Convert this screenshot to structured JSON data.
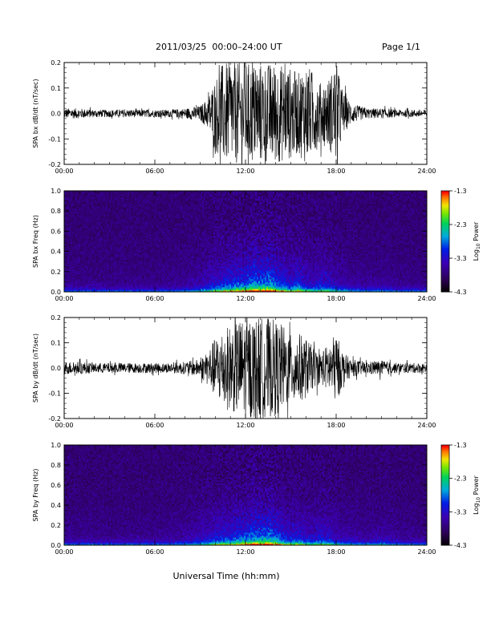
{
  "header": {
    "title": "2011/03/25  00:00–24:00 UT",
    "page": "Page 1/1"
  },
  "xlabel": "Universal Time (hh:mm)",
  "colorbar": {
    "label_prefix": "Log",
    "label_sub": "10",
    "label_suffix": " Power",
    "ticks": [
      "-1.3",
      "-2.3",
      "-3.3",
      "-4.3"
    ],
    "values": [
      -1.3,
      -2.3,
      -3.3,
      -4.3
    ]
  },
  "chart_data": [
    {
      "type": "line",
      "ylabel": "SPA bx dB/dt (nT/sec)",
      "xticks": [
        "00:00",
        "06:00",
        "12:00",
        "18:00",
        "24:00"
      ],
      "xlim": [
        0,
        24
      ],
      "ylim": [
        -0.2,
        0.2
      ],
      "yticks": [
        "0.2",
        "0.1",
        "0.0",
        "-0.1",
        "-0.2"
      ],
      "ytick_values": [
        0.2,
        0.1,
        0.0,
        -0.1,
        -0.2
      ],
      "series": [
        {
          "x": [
            0,
            1,
            2,
            3,
            4,
            5,
            6,
            7,
            8,
            9,
            9.5,
            10,
            10.5,
            11,
            11.5,
            12,
            12.5,
            13,
            13.5,
            14,
            14.5,
            15,
            15.5,
            16,
            16.5,
            17,
            17.5,
            18,
            18.5,
            19,
            20,
            21,
            22,
            23,
            24
          ],
          "amplitude": [
            0.02,
            0.02,
            0.015,
            0.015,
            0.015,
            0.015,
            0.015,
            0.015,
            0.02,
            0.03,
            0.06,
            0.14,
            0.2,
            0.2,
            0.2,
            0.2,
            0.2,
            0.2,
            0.2,
            0.2,
            0.19,
            0.18,
            0.16,
            0.2,
            0.16,
            0.12,
            0.14,
            0.2,
            0.08,
            0.04,
            0.02,
            0.02,
            0.015,
            0.015,
            0.015
          ]
        }
      ]
    },
    {
      "type": "heatmap",
      "ylabel": "SPA bx Freq (Hz)",
      "xticks": [
        "00:00",
        "06:00",
        "12:00",
        "18:00",
        "24:00"
      ],
      "xlim": [
        0,
        24
      ],
      "ylim": [
        0,
        1
      ],
      "yticks": [
        "1.0",
        "0.8",
        "0.6",
        "0.4",
        "0.2",
        "0.0"
      ],
      "ytick_values": [
        1.0,
        0.8,
        0.6,
        0.4,
        0.2,
        0.0
      ],
      "zlim": [
        -4.3,
        -1.3
      ],
      "activity": {
        "t": [
          0,
          2,
          4,
          6,
          8,
          9,
          10,
          11,
          12,
          12.5,
          13,
          13.5,
          14,
          14.5,
          15,
          15.5,
          16,
          16.5,
          17,
          17.5,
          18,
          19,
          20,
          21,
          22,
          24
        ],
        "level": [
          0.1,
          0.1,
          0.1,
          0.1,
          0.15,
          0.25,
          0.45,
          0.6,
          0.7,
          0.85,
          0.75,
          0.9,
          0.7,
          0.6,
          0.45,
          0.6,
          0.4,
          0.35,
          0.45,
          0.4,
          0.3,
          0.2,
          0.15,
          0.18,
          0.12,
          0.1
        ]
      }
    },
    {
      "type": "line",
      "ylabel": "SPA by dB/dt (nT/sec)",
      "xticks": [
        "00:00",
        "06:00",
        "12:00",
        "18:00",
        "24:00"
      ],
      "xlim": [
        0,
        24
      ],
      "ylim": [
        -0.2,
        0.2
      ],
      "yticks": [
        "0.2",
        "0.1",
        "0.0",
        "-0.1",
        "-0.2"
      ],
      "ytick_values": [
        0.2,
        0.1,
        0.0,
        -0.1,
        -0.2
      ],
      "series": [
        {
          "x": [
            0,
            1,
            2,
            3,
            4,
            5,
            6,
            7,
            8,
            9,
            9.5,
            10,
            10.5,
            11,
            11.5,
            12,
            12.5,
            13,
            13.5,
            14,
            14.5,
            15,
            15.5,
            16,
            16.5,
            17,
            17.5,
            18,
            18.5,
            19,
            20,
            21,
            22,
            23,
            24
          ],
          "amplitude": [
            0.025,
            0.025,
            0.02,
            0.02,
            0.02,
            0.02,
            0.02,
            0.02,
            0.025,
            0.035,
            0.07,
            0.12,
            0.16,
            0.17,
            0.19,
            0.2,
            0.2,
            0.2,
            0.2,
            0.19,
            0.17,
            0.13,
            0.14,
            0.12,
            0.08,
            0.06,
            0.1,
            0.14,
            0.06,
            0.035,
            0.025,
            0.03,
            0.02,
            0.02,
            0.02
          ]
        }
      ]
    },
    {
      "type": "heatmap",
      "ylabel": "SPA by Freq (Hz)",
      "xticks": [
        "00:00",
        "06:00",
        "12:00",
        "18:00",
        "24:00"
      ],
      "xlim": [
        0,
        24
      ],
      "ylim": [
        0,
        1
      ],
      "yticks": [
        "1.0",
        "0.8",
        "0.6",
        "0.4",
        "0.2",
        "0.0"
      ],
      "ytick_values": [
        1.0,
        0.8,
        0.6,
        0.4,
        0.2,
        0.0
      ],
      "zlim": [
        -4.3,
        -1.3
      ],
      "activity": {
        "t": [
          0,
          2,
          4,
          6,
          8,
          9,
          10,
          11,
          12,
          12.5,
          13,
          13.5,
          14,
          14.5,
          15,
          15.5,
          16,
          16.5,
          17,
          17.5,
          18,
          19,
          20,
          21,
          22,
          24
        ],
        "level": [
          0.12,
          0.12,
          0.1,
          0.12,
          0.18,
          0.3,
          0.45,
          0.55,
          0.7,
          0.8,
          0.75,
          0.85,
          0.7,
          0.55,
          0.45,
          0.5,
          0.4,
          0.35,
          0.45,
          0.4,
          0.3,
          0.22,
          0.18,
          0.25,
          0.15,
          0.1
        ]
      }
    }
  ]
}
